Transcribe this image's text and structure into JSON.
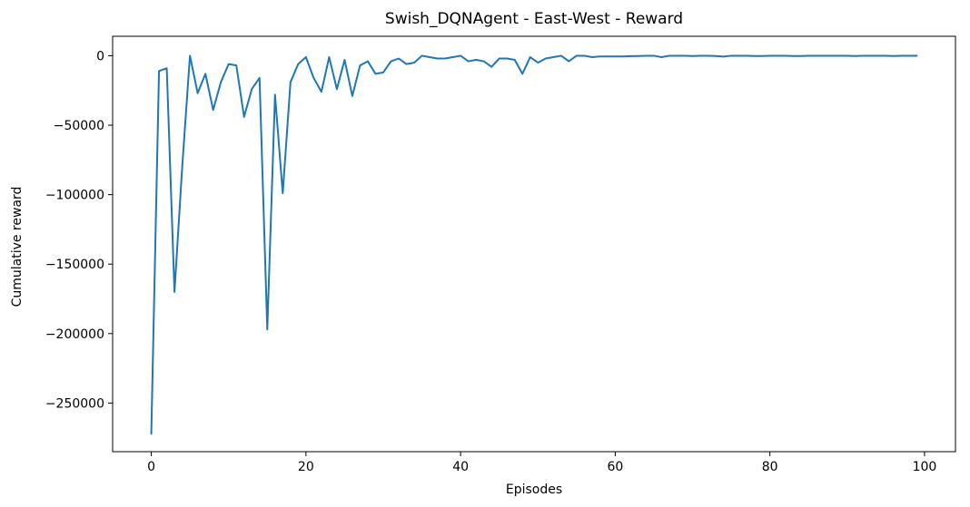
{
  "chart_data": {
    "type": "line",
    "title": "Swish_DQNAgent - East-West - Reward",
    "xlabel": "Episodes",
    "ylabel": "Cumulative reward",
    "xlim": [
      -5,
      104
    ],
    "ylim": [
      -285000,
      14000
    ],
    "xticks": [
      0,
      20,
      40,
      60,
      80,
      100
    ],
    "xtick_labels": [
      "0",
      "20",
      "40",
      "60",
      "80",
      "100"
    ],
    "yticks": [
      0,
      -50000,
      -100000,
      -150000,
      -200000,
      -250000
    ],
    "ytick_labels": [
      "0",
      "−50000",
      "−100000",
      "−150000",
      "−200000",
      "−250000"
    ],
    "grid": false,
    "line_color": "#1f77b4",
    "series": [
      {
        "x": [
          0,
          1,
          2,
          3,
          4,
          5,
          6,
          7,
          8,
          9,
          10,
          11,
          12,
          13,
          14,
          15,
          16,
          17,
          18,
          19,
          20,
          21,
          22,
          23,
          24,
          25,
          26,
          27,
          28,
          29,
          30,
          31,
          32,
          33,
          34,
          35,
          36,
          37,
          38,
          39,
          40,
          41,
          42,
          43,
          44,
          45,
          46,
          47,
          48,
          49,
          50,
          51,
          52,
          53,
          54,
          55,
          56,
          57,
          58,
          59,
          60,
          61,
          62,
          63,
          64,
          65,
          66,
          67,
          68,
          69,
          70,
          71,
          72,
          73,
          74,
          75,
          76,
          77,
          78,
          79,
          80,
          81,
          82,
          83,
          84,
          85,
          86,
          87,
          88,
          89,
          90,
          91,
          92,
          93,
          94,
          95,
          96,
          97,
          98,
          99
        ],
        "values": [
          -272000,
          -11000,
          -9000,
          -170000,
          -80000,
          0,
          -27000,
          -13000,
          -39000,
          -19000,
          -6000,
          -7000,
          -44000,
          -24000,
          -16000,
          -197000,
          -28000,
          -99000,
          -19000,
          -6000,
          -1000,
          -16000,
          -26000,
          -1000,
          -24000,
          -3000,
          -29000,
          -7000,
          -4000,
          -13000,
          -12000,
          -4000,
          -2000,
          -6000,
          -5000,
          0,
          -1000,
          -2000,
          -2000,
          -1000,
          0,
          -4000,
          -3000,
          -4000,
          -8000,
          -2000,
          -2000,
          -3000,
          -13000,
          -1000,
          -5000,
          -2000,
          -1000,
          0,
          -4000,
          0,
          0,
          -1000,
          -500,
          -500,
          -500,
          -500,
          -300,
          -200,
          0,
          0,
          -1000,
          0,
          0,
          0,
          -200,
          0,
          0,
          -200,
          -600,
          0,
          0,
          0,
          -200,
          -200,
          0,
          0,
          0,
          -200,
          -200,
          0,
          0,
          0,
          0,
          0,
          0,
          -200,
          0,
          0,
          0,
          0,
          -200,
          0,
          0,
          0
        ]
      }
    ]
  }
}
